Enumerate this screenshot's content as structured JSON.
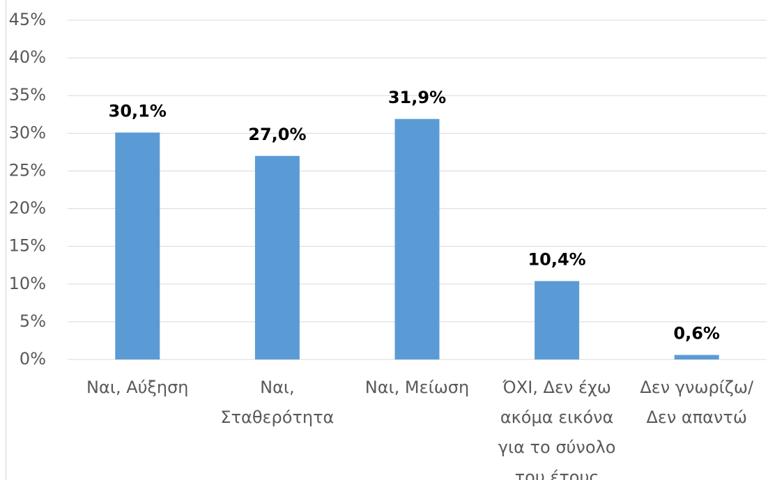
{
  "chart_data": {
    "type": "bar",
    "categories": [
      "Ναι, Αύξηση",
      "Ναι, Σταθερότητα",
      "Ναι, Μείωση",
      "ΌΧΙ, Δεν έχω ακόμα εικόνα για το σύνολο του έτους",
      "Δεν γνωρίζω/Δεν απαντώ"
    ],
    "values": [
      30.1,
      27.0,
      31.9,
      10.4,
      0.6
    ],
    "value_labels": [
      "30,1%",
      "27,0%",
      "31,9%",
      "10,4%",
      "0,6%"
    ],
    "color": "#5b9bd5",
    "ylim": [
      0,
      45
    ],
    "yticks": [
      {
        "value": 0,
        "label": "0%"
      },
      {
        "value": 5,
        "label": "5%"
      },
      {
        "value": 10,
        "label": "10%"
      },
      {
        "value": 15,
        "label": "15%"
      },
      {
        "value": 20,
        "label": "20%"
      },
      {
        "value": 25,
        "label": "25%"
      },
      {
        "value": 30,
        "label": "30%"
      },
      {
        "value": 35,
        "label": "35%"
      },
      {
        "value": 40,
        "label": "40%"
      },
      {
        "value": 45,
        "label": "45%"
      }
    ],
    "grid": true
  }
}
